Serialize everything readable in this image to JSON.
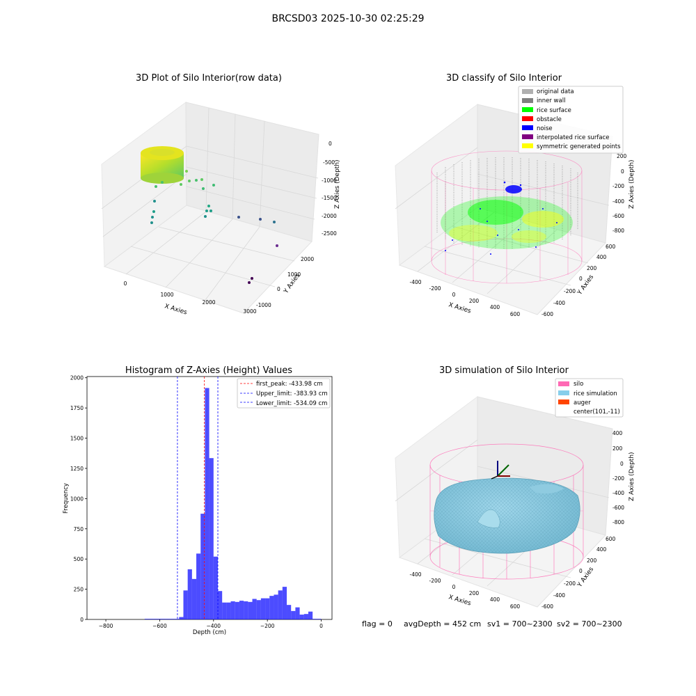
{
  "suptitle": "BRCSD03 2025-10-30 02:25:29",
  "footer": {
    "flag": "flag = 0",
    "avg": "avgDepth = 452 cm",
    "sv1": "sv1 = 700~2300",
    "sv2": "sv2 = 700~2300"
  },
  "colors": {
    "original": "#b0b0b0",
    "inner_wall": "#808080",
    "rice_surface": "#00ff00",
    "obstacle": "#ff0000",
    "noise": "#0000ff",
    "interpolated": "#800080",
    "symmetric": "#ffff00",
    "silo": "#ff69b4",
    "rice_sim": "#87ceeb",
    "auger": "#ff4500",
    "hist_bar": "#0000ff",
    "peak_line": "#ff0000",
    "limit_line": "#0000ff"
  },
  "chart_data": [
    {
      "type": "scatter",
      "title": "3D Plot of Silo Interior(row data)",
      "xlabel": "X Axies",
      "ylabel": "Y Axies",
      "zlabel": "Z Axies (Depth)",
      "x_ticks": [
        "0",
        "1000",
        "2000",
        "3000"
      ],
      "y_ticks": [
        "-1000",
        "0",
        "1000",
        "2000"
      ],
      "z_ticks": [
        "0",
        "-500",
        "-1000",
        "-1500",
        "-2000",
        "-2500"
      ],
      "colormap": "viridis"
    },
    {
      "type": "scatter",
      "title": "3D classify of Silo Interior",
      "xlabel": "X Axies",
      "ylabel": "Y Axies",
      "zlabel": "Z Axies (Depth)",
      "x_ticks": [
        "-400",
        "-200",
        "0",
        "200",
        "400",
        "600"
      ],
      "y_ticks": [
        "-600",
        "-400",
        "-200",
        "0",
        "200",
        "400",
        "600"
      ],
      "z_ticks": [
        "200",
        "0",
        "-200",
        "-400",
        "-600",
        "-800"
      ],
      "legend": [
        "original data",
        "inner wall",
        "rice surface",
        "obstacle",
        "noise",
        "interpolated rice surface",
        "symmetric generated points"
      ],
      "legend_loc": "upper right"
    },
    {
      "type": "bar",
      "title": "Histogram of Z-Axies (Height) Values",
      "xlabel": "Depth (cm)",
      "ylabel": "Frequency",
      "xlim": [
        -870,
        40
      ],
      "ylim": [
        0,
        2010
      ],
      "x_ticks": [
        -800,
        -600,
        -400,
        -200,
        0
      ],
      "y_ticks": [
        0,
        250,
        500,
        750,
        1000,
        1250,
        1500,
        1750,
        2000
      ],
      "bin_width": 16,
      "bins_start": [
        -656,
        -640,
        -624,
        -608,
        -592,
        -576,
        -560,
        -544,
        -528,
        -512,
        -496,
        -480,
        -464,
        -448,
        -432,
        -416,
        -400,
        -384,
        -368,
        -352,
        -336,
        -320,
        -304,
        -288,
        -272,
        -256,
        -240,
        -224,
        -208,
        -192,
        -176,
        -160,
        -144,
        -128,
        -112,
        -96,
        -80,
        -64,
        -48,
        -32,
        -16
      ],
      "values": [
        5,
        5,
        5,
        5,
        5,
        5,
        5,
        5,
        20,
        240,
        415,
        335,
        545,
        875,
        1915,
        1335,
        520,
        235,
        140,
        140,
        150,
        145,
        155,
        150,
        145,
        170,
        160,
        175,
        175,
        195,
        205,
        240,
        270,
        120,
        70,
        100,
        40,
        45,
        65,
        5,
        5
      ],
      "vlines": [
        {
          "x": -433.98,
          "label": "first_peak: -433.98 cm",
          "color": "#ff0000"
        },
        {
          "x": -383.93,
          "label": "Upper_limit: -383.93 cm",
          "color": "#0000ff"
        },
        {
          "x": -534.09,
          "label": "Lower_limit: -534.09 cm",
          "color": "#0000ff"
        }
      ],
      "legend_loc": "upper right"
    },
    {
      "type": "area",
      "title": "3D simulation of Silo Interior",
      "xlabel": "X Axies",
      "ylabel": "Y Axies",
      "zlabel": "Z Axies (Depth)",
      "x_ticks": [
        "-400",
        "-200",
        "0",
        "200",
        "400",
        "600"
      ],
      "y_ticks": [
        "-600",
        "-400",
        "-200",
        "0",
        "200",
        "400",
        "600"
      ],
      "z_ticks": [
        "400",
        "200",
        "0",
        "-200",
        "-400",
        "-600",
        "-800"
      ],
      "legend": [
        "silo",
        "rice simulation",
        "auger",
        "center(101,-11)"
      ],
      "legend_loc": "upper right"
    }
  ]
}
